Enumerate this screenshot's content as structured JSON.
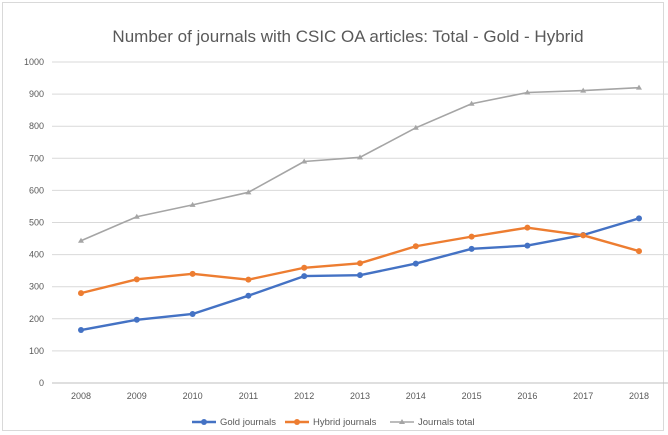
{
  "chart_data": {
    "type": "line",
    "title": "Number of journals with CSIC OA articles: Total - Gold - Hybrid",
    "xlabel": "",
    "ylabel": "",
    "categories": [
      "2008",
      "2009",
      "2010",
      "2011",
      "2012",
      "2013",
      "2014",
      "2015",
      "2016",
      "2017",
      "2018"
    ],
    "ylim": [
      0,
      1000
    ],
    "yticks": [
      0,
      100,
      200,
      300,
      400,
      500,
      600,
      700,
      800,
      900,
      1000
    ],
    "ytick_labels": [
      "0",
      "100",
      "200",
      "300",
      "400",
      "500",
      "600",
      "700",
      "800",
      "900",
      "1000"
    ],
    "grid": true,
    "legend_position": "bottom",
    "series": [
      {
        "name": "Gold journals",
        "color": "#4472c4",
        "marker": "circle",
        "values": [
          165,
          197,
          215,
          272,
          333,
          336,
          372,
          418,
          428,
          461,
          513
        ]
      },
      {
        "name": "Hybrid journals",
        "color": "#ed7d31",
        "marker": "circle",
        "values": [
          280,
          323,
          340,
          322,
          359,
          373,
          426,
          456,
          484,
          460,
          411
        ]
      },
      {
        "name": "Journals total",
        "color": "#a5a5a5",
        "marker": "triangle",
        "values": [
          443,
          518,
          555,
          594,
          690,
          703,
          795,
          870,
          905,
          911,
          920
        ]
      }
    ]
  }
}
